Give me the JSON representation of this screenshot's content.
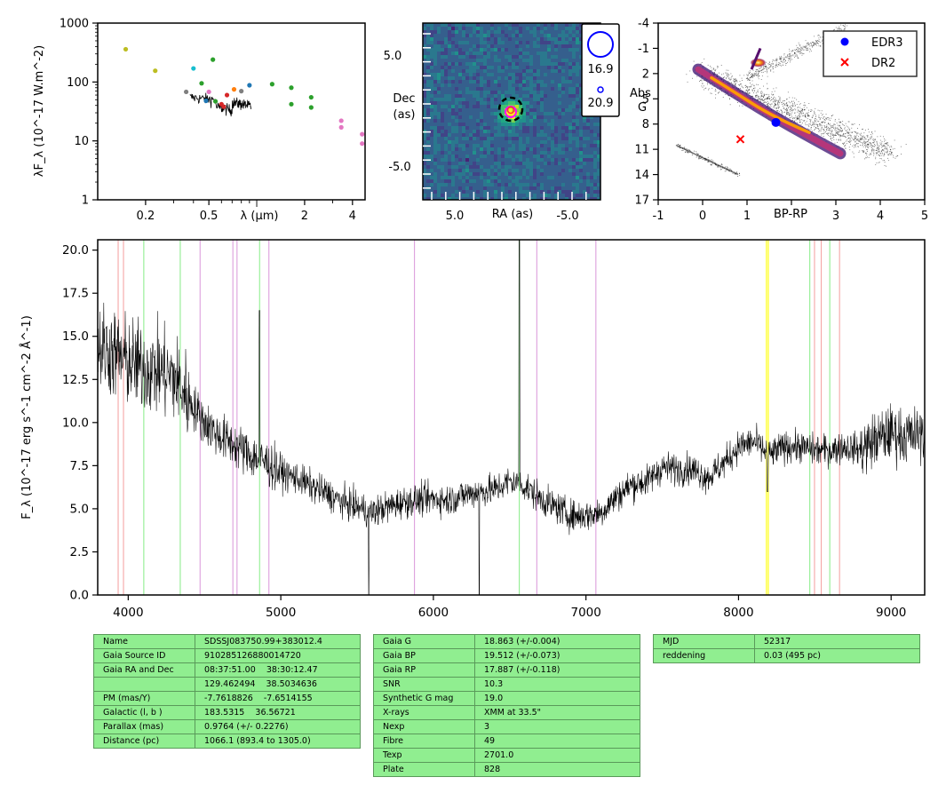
{
  "sed": {
    "ylabel": "λF_λ (10^-17 W.m^-2)",
    "xlabel": "λ (μm)",
    "yticks": [
      "1000",
      "100",
      "10",
      "1"
    ],
    "xticks": [
      "0.2",
      "0.5",
      "2",
      "4"
    ],
    "xlim": [
      0.1,
      4.8
    ],
    "ylim": [
      1,
      1000
    ],
    "scale": "log-log",
    "points": [
      {
        "x": 0.15,
        "y": 360,
        "color": "#bcbd22"
      },
      {
        "x": 0.23,
        "y": 155,
        "color": "#bcbd22"
      },
      {
        "x": 0.36,
        "y": 68,
        "color": "#7f7f7f"
      },
      {
        "x": 0.4,
        "y": 170,
        "color": "#17becf"
      },
      {
        "x": 0.45,
        "y": 95,
        "color": "#2ca02c"
      },
      {
        "x": 0.48,
        "y": 48,
        "color": "#1f77b4"
      },
      {
        "x": 0.5,
        "y": 68,
        "color": "#e377c2"
      },
      {
        "x": 0.53,
        "y": 240,
        "color": "#2ca02c"
      },
      {
        "x": 0.55,
        "y": 47,
        "color": "#2ca02c"
      },
      {
        "x": 0.6,
        "y": 42,
        "color": "#d62728"
      },
      {
        "x": 0.62,
        "y": 38,
        "color": "#d62728"
      },
      {
        "x": 0.65,
        "y": 60,
        "color": "#d62728"
      },
      {
        "x": 0.72,
        "y": 75,
        "color": "#ff7f0e"
      },
      {
        "x": 0.8,
        "y": 70,
        "color": "#7f7f7f"
      },
      {
        "x": 0.9,
        "y": 88,
        "color": "#1f77b4"
      },
      {
        "x": 1.25,
        "y": 92,
        "color": "#2ca02c"
      },
      {
        "x": 1.65,
        "y": 80,
        "color": "#2ca02c"
      },
      {
        "x": 1.65,
        "y": 42,
        "color": "#2ca02c"
      },
      {
        "x": 2.2,
        "y": 55,
        "color": "#2ca02c"
      },
      {
        "x": 2.2,
        "y": 37,
        "color": "#2ca02c"
      },
      {
        "x": 3.4,
        "y": 22,
        "color": "#e377c2"
      },
      {
        "x": 3.4,
        "y": 17,
        "color": "#e377c2"
      },
      {
        "x": 4.6,
        "y": 13,
        "color": "#e377c2"
      },
      {
        "x": 4.6,
        "y": 9,
        "color": "#e377c2"
      }
    ]
  },
  "image_panel": {
    "xlabel": "RA (as)",
    "ylabel_line1": "Dec",
    "ylabel_line2": "(as)",
    "xticks": [
      "5.0",
      "-5.0"
    ],
    "yticks": [
      "5.0",
      "-5.0"
    ],
    "legend": [
      "16.9",
      "20.9"
    ]
  },
  "cmd": {
    "xlabel": "BP-RP",
    "ylabel_line1": "Abs",
    "ylabel_line2": "G",
    "xticks": [
      "-1",
      "0",
      "1",
      "2",
      "3",
      "4",
      "5"
    ],
    "yticks": [
      "-4",
      "-1",
      "2",
      "5",
      "8",
      "11",
      "14",
      "17"
    ],
    "xlim": [
      -1,
      5
    ],
    "ylim": [
      17,
      -4
    ],
    "legend": [
      {
        "label": "EDR3",
        "color": "#0000ff",
        "marker": "circle"
      },
      {
        "label": "DR2",
        "color": "#ff0000",
        "marker": "cross"
      }
    ],
    "edr3_point": {
      "x": 1.65,
      "y": 7.8
    },
    "dr2_point": {
      "x": 0.85,
      "y": 9.8
    }
  },
  "chart_data": {
    "type": "line",
    "xlabel": "",
    "ylabel": "F_λ (10^-17 erg s^-1 cm^-2 Å^-1)",
    "xlim": [
      3800,
      9220
    ],
    "ylim": [
      0,
      20.6
    ],
    "xticks": [
      "4000",
      "5000",
      "6000",
      "7000",
      "8000",
      "9000"
    ],
    "yticks": [
      "0.0",
      "2.5",
      "5.0",
      "7.5",
      "10.0",
      "12.5",
      "15.0",
      "17.5",
      "20.0"
    ],
    "series": [
      {
        "x": [
          3800,
          3900,
          4000,
          4100,
          4200,
          4300,
          4400,
          4500,
          4600,
          4700,
          4800,
          4900,
          5000,
          5100,
          5200,
          5300,
          5400,
          5500,
          5600,
          5700,
          5800,
          5900,
          6000,
          6100,
          6200,
          6300,
          6400,
          6500,
          6600,
          6700,
          6800,
          6900,
          7000,
          7100,
          7200,
          7300,
          7400,
          7500,
          7600,
          7700,
          7800,
          7900,
          8000,
          8100,
          8200,
          8300,
          8400,
          8500,
          8600,
          8700,
          8800,
          8900,
          9000,
          9100,
          9200
        ],
        "y": [
          14.5,
          14.0,
          13.5,
          13.2,
          13.0,
          12.6,
          11.3,
          10.0,
          9.2,
          8.7,
          8.1,
          7.7,
          7.1,
          6.8,
          6.3,
          5.9,
          5.4,
          5.1,
          4.8,
          5.1,
          5.4,
          5.5,
          5.6,
          5.5,
          5.8,
          6.0,
          6.1,
          6.6,
          6.3,
          5.6,
          5.1,
          4.6,
          4.6,
          4.8,
          5.7,
          6.4,
          6.6,
          7.4,
          7.3,
          7.3,
          6.8,
          7.6,
          8.6,
          8.9,
          8.1,
          8.6,
          8.6,
          8.4,
          8.4,
          8.6,
          8.4,
          9.0,
          9.4,
          9.2,
          9.3
        ]
      }
    ],
    "vertical_lines": [
      {
        "x": 3934,
        "color": "#f4a6a6"
      },
      {
        "x": 3969,
        "color": "#f4a6a6"
      },
      {
        "x": 4102,
        "color": "#90ee90"
      },
      {
        "x": 4341,
        "color": "#90ee90"
      },
      {
        "x": 4471,
        "color": "#dda0dd"
      },
      {
        "x": 4686,
        "color": "#dda0dd"
      },
      {
        "x": 4713,
        "color": "#dda0dd"
      },
      {
        "x": 4861,
        "color": "#90ee90"
      },
      {
        "x": 4922,
        "color": "#dda0dd"
      },
      {
        "x": 5876,
        "color": "#dda0dd"
      },
      {
        "x": 6563,
        "color": "#90ee90"
      },
      {
        "x": 6678,
        "color": "#dda0dd"
      },
      {
        "x": 7065,
        "color": "#dda0dd"
      },
      {
        "x": 8183,
        "color": "#ffff00"
      },
      {
        "x": 8195,
        "color": "#ffff00"
      },
      {
        "x": 8467,
        "color": "#90ee90"
      },
      {
        "x": 8498,
        "color": "#f4a6a6"
      },
      {
        "x": 8542,
        "color": "#f4a6a6"
      },
      {
        "x": 8598,
        "color": "#90ee90"
      },
      {
        "x": 8662,
        "color": "#f4a6a6"
      }
    ]
  },
  "tables": {
    "t1": [
      [
        "Name",
        "SDSSJ083750.99+383012.4"
      ],
      [
        "Gaia Source ID",
        "910285126880014720"
      ],
      [
        "Gaia RA and Dec",
        "08:37:51.00    38:30:12.47"
      ],
      [
        "",
        "129.462494    38.5034636"
      ],
      [
        "PM (mas/Y)",
        "-7.7618826    -7.6514155"
      ],
      [
        "Galactic (l, b )",
        "183.5315    36.56721"
      ],
      [
        "Parallax (mas)",
        "0.9764 (+/- 0.2276)"
      ],
      [
        "Distance (pc)",
        "1066.1 (893.4 to 1305.0)"
      ]
    ],
    "t2": [
      [
        "Gaia G",
        "18.863 (+/-0.004)"
      ],
      [
        "Gaia BP",
        "19.512 (+/-0.073)"
      ],
      [
        "Gaia RP",
        "17.887 (+/-0.118)"
      ],
      [
        "SNR",
        "10.3"
      ],
      [
        "Synthetic G mag",
        "19.0"
      ],
      [
        "X-rays",
        "XMM at 33.5\""
      ],
      [
        "Nexp",
        "3"
      ],
      [
        "Fibre",
        "49"
      ],
      [
        "Texp",
        "2701.0"
      ],
      [
        "Plate",
        "828"
      ]
    ],
    "t3": [
      [
        "MJD",
        "52317"
      ],
      [
        "reddening",
        "0.03 (495 pc)"
      ]
    ]
  }
}
